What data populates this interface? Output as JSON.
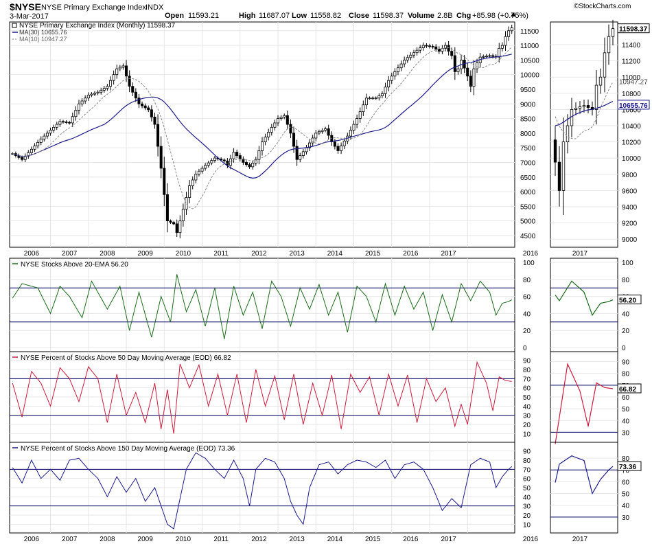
{
  "header": {
    "symbol": "$NYSE",
    "name": "NYSE Primary Exchange Index",
    "exchange": "INDX",
    "date": "3-Mar-2017",
    "brand": "©StockCharts.com",
    "open_label": "Open",
    "open": "11593.21",
    "high_label": "High",
    "high": "11687.07",
    "low_label": "Low",
    "low": "11558.82",
    "close_label": "Close",
    "close": "11598.37",
    "volume_label": "Volume",
    "volume": "2.8B",
    "chg_label": "Chg",
    "chg": "+85.98 (+0.75%)"
  },
  "colors": {
    "up": "#000000",
    "down": "#000000",
    "ma30": "#1a1a8c",
    "ma10": "#888888",
    "p1": "#1a6b1a",
    "p2": "#cc1a3a",
    "p3": "#1a1a8c",
    "ref": "#000066",
    "grid": "#e6e6e6"
  },
  "chart_data": [
    {
      "type": "candlestick",
      "title": "NYSE Primary Exchange Index (Monthly) 11598.37",
      "legend": [
        "MA(30) 10655.76",
        "MA(10) 10947.27"
      ],
      "last_value": "11598.37",
      "ma30_last": "10655.76",
      "ma10_last": "10947.27",
      "x_ticks": [
        "2006",
        "2007",
        "2008",
        "2009",
        "2010",
        "2011",
        "2012",
        "2013",
        "2014",
        "2015",
        "2016",
        "2017"
      ],
      "y_ticks": [
        "4500",
        "5000",
        "5500",
        "6000",
        "6500",
        "7000",
        "7500",
        "8000",
        "8500",
        "9000",
        "9500",
        "10000",
        "10500",
        "11000",
        "11500"
      ],
      "zoom_y_ticks": [
        "9000",
        "9200",
        "9400",
        "9600",
        "9800",
        "10000",
        "10200",
        "10400",
        "10600",
        "10800",
        "11000",
        "11200",
        "11400"
      ],
      "zoom_x_ticks": [
        "2016",
        "2017"
      ],
      "ylim": [
        4100,
        11800
      ],
      "anchors": [
        [
          0,
          7300
        ],
        [
          3,
          7100
        ],
        [
          6,
          7450
        ],
        [
          9,
          7800
        ],
        [
          12,
          8100
        ],
        [
          15,
          8400
        ],
        [
          18,
          8350
        ],
        [
          21,
          9000
        ],
        [
          24,
          9300
        ],
        [
          27,
          9400
        ],
        [
          30,
          9600
        ],
        [
          33,
          10200
        ],
        [
          35,
          10300
        ],
        [
          37,
          9600
        ],
        [
          40,
          9000
        ],
        [
          43,
          8800
        ],
        [
          45,
          8300
        ],
        [
          47,
          6800
        ],
        [
          49,
          5000
        ],
        [
          51,
          4900
        ],
        [
          52,
          4600
        ],
        [
          54,
          5400
        ],
        [
          56,
          6200
        ],
        [
          58,
          6600
        ],
        [
          61,
          6900
        ],
        [
          64,
          7150
        ],
        [
          67,
          7050
        ],
        [
          68,
          6900
        ],
        [
          70,
          7350
        ],
        [
          73,
          7000
        ],
        [
          75,
          6850
        ],
        [
          77,
          7100
        ],
        [
          79,
          7700
        ],
        [
          82,
          8200
        ],
        [
          84,
          8500
        ],
        [
          86,
          8600
        ],
        [
          88,
          8000
        ],
        [
          90,
          7100
        ],
        [
          93,
          7500
        ],
        [
          96,
          8000
        ],
        [
          99,
          8150
        ],
        [
          101,
          7700
        ],
        [
          103,
          7400
        ],
        [
          106,
          7900
        ],
        [
          109,
          8500
        ],
        [
          112,
          9200
        ],
        [
          115,
          9200
        ],
        [
          117,
          9350
        ],
        [
          119,
          9800
        ],
        [
          121,
          10100
        ],
        [
          124,
          10500
        ],
        [
          127,
          10750
        ],
        [
          130,
          11000
        ],
        [
          133,
          10950
        ],
        [
          135,
          10800
        ],
        [
          137,
          11000
        ],
        [
          138,
          10800
        ],
        [
          139,
          10650
        ],
        [
          140,
          10100
        ],
        [
          141,
          10200
        ],
        [
          142,
          10500
        ],
        [
          144,
          9950
        ],
        [
          145,
          9600
        ],
        [
          146,
          10200
        ],
        [
          148,
          10600
        ],
        [
          151,
          10650
        ],
        [
          153,
          10600
        ],
        [
          154,
          10900
        ],
        [
          155,
          11000
        ],
        [
          156,
          11300
        ],
        [
          157,
          11500
        ],
        [
          158,
          11598
        ]
      ],
      "x": {
        "start": "2005-01",
        "end": "2017-03",
        "step": "month"
      },
      "subtitle": "",
      "xlabel": "",
      "ylabel": ""
    },
    {
      "type": "line",
      "title": "NYSE Stocks Above 20-EMA 56.20",
      "last_value": "56.20",
      "y_ticks": [
        "0",
        "20",
        "40",
        "60",
        "80",
        "100"
      ],
      "ylim": [
        0,
        100
      ],
      "ref_lines": [
        30,
        70
      ],
      "anchors": [
        [
          0,
          58
        ],
        [
          3,
          75
        ],
        [
          8,
          70
        ],
        [
          12,
          40
        ],
        [
          15,
          72
        ],
        [
          18,
          60
        ],
        [
          22,
          35
        ],
        [
          25,
          78
        ],
        [
          30,
          45
        ],
        [
          34,
          72
        ],
        [
          37,
          20
        ],
        [
          40,
          65
        ],
        [
          44,
          12
        ],
        [
          47,
          60
        ],
        [
          50,
          30
        ],
        [
          52,
          86
        ],
        [
          55,
          42
        ],
        [
          58,
          68
        ],
        [
          61,
          25
        ],
        [
          64,
          70
        ],
        [
          67,
          10
        ],
        [
          70,
          72
        ],
        [
          73,
          38
        ],
        [
          76,
          65
        ],
        [
          79,
          22
        ],
        [
          82,
          78
        ],
        [
          85,
          60
        ],
        [
          88,
          25
        ],
        [
          91,
          70
        ],
        [
          94,
          45
        ],
        [
          97,
          74
        ],
        [
          100,
          38
        ],
        [
          103,
          65
        ],
        [
          106,
          18
        ],
        [
          109,
          72
        ],
        [
          112,
          60
        ],
        [
          115,
          30
        ],
        [
          118,
          75
        ],
        [
          121,
          38
        ],
        [
          124,
          72
        ],
        [
          127,
          45
        ],
        [
          130,
          65
        ],
        [
          133,
          20
        ],
        [
          136,
          62
        ],
        [
          139,
          30
        ],
        [
          142,
          75
        ],
        [
          145,
          55
        ],
        [
          148,
          78
        ],
        [
          151,
          65
        ],
        [
          153,
          38
        ],
        [
          155,
          52
        ],
        [
          157,
          54
        ],
        [
          158,
          56
        ]
      ],
      "zoom_ticks": [
        "0",
        "20",
        "40",
        "60",
        "80",
        "100"
      ],
      "x": {
        "start": "2005-01",
        "end": "2017-03",
        "step": "month"
      },
      "subtitle": "",
      "xlabel": "",
      "ylabel": ""
    },
    {
      "type": "line",
      "title": "NYSE Percent of Stocks Above 50 Day Moving Average (EOD) 66.82",
      "last_value": "66.82",
      "y_ticks": [
        "10",
        "20",
        "30",
        "40",
        "50",
        "60",
        "70",
        "80",
        "90"
      ],
      "ylim": [
        5,
        95
      ],
      "ref_lines": [
        30,
        70
      ],
      "anchors": [
        [
          0,
          65
        ],
        [
          3,
          28
        ],
        [
          6,
          78
        ],
        [
          9,
          65
        ],
        [
          12,
          40
        ],
        [
          15,
          82
        ],
        [
          18,
          70
        ],
        [
          21,
          45
        ],
        [
          24,
          83
        ],
        [
          27,
          70
        ],
        [
          30,
          22
        ],
        [
          33,
          75
        ],
        [
          36,
          30
        ],
        [
          39,
          55
        ],
        [
          42,
          22
        ],
        [
          45,
          65
        ],
        [
          47,
          15
        ],
        [
          49,
          58
        ],
        [
          51,
          10
        ],
        [
          53,
          86
        ],
        [
          56,
          60
        ],
        [
          59,
          85
        ],
        [
          62,
          40
        ],
        [
          65,
          75
        ],
        [
          68,
          30
        ],
        [
          71,
          75
        ],
        [
          74,
          22
        ],
        [
          77,
          80
        ],
        [
          80,
          40
        ],
        [
          83,
          73
        ],
        [
          86,
          25
        ],
        [
          89,
          75
        ],
        [
          92,
          20
        ],
        [
          95,
          65
        ],
        [
          98,
          30
        ],
        [
          101,
          74
        ],
        [
          104,
          15
        ],
        [
          107,
          75
        ],
        [
          110,
          55
        ],
        [
          113,
          72
        ],
        [
          116,
          30
        ],
        [
          119,
          75
        ],
        [
          122,
          40
        ],
        [
          125,
          74
        ],
        [
          128,
          22
        ],
        [
          131,
          70
        ],
        [
          134,
          45
        ],
        [
          137,
          60
        ],
        [
          140,
          18
        ],
        [
          142,
          42
        ],
        [
          144,
          20
        ],
        [
          147,
          88
        ],
        [
          150,
          65
        ],
        [
          152,
          35
        ],
        [
          154,
          72
        ],
        [
          156,
          68
        ],
        [
          158,
          67
        ]
      ],
      "zoom_ticks": [
        "30",
        "40",
        "50",
        "60",
        "70",
        "80",
        "90"
      ],
      "x": {
        "start": "2005-01",
        "end": "2017-03",
        "step": "month"
      },
      "subtitle": "",
      "xlabel": "",
      "ylabel": ""
    },
    {
      "type": "line",
      "title": "NYSE Percent of Stocks Above 150 Day Moving Average (EOD) 73.36",
      "last_value": "73.36",
      "y_ticks": [
        "10",
        "20",
        "30",
        "40",
        "50",
        "60",
        "70",
        "80",
        "90"
      ],
      "ylim": [
        5,
        95
      ],
      "ref_lines": [
        30,
        70
      ],
      "anchors": [
        [
          0,
          72
        ],
        [
          3,
          55
        ],
        [
          6,
          80
        ],
        [
          9,
          60
        ],
        [
          12,
          70
        ],
        [
          15,
          58
        ],
        [
          18,
          80
        ],
        [
          21,
          82
        ],
        [
          24,
          70
        ],
        [
          27,
          60
        ],
        [
          30,
          40
        ],
        [
          33,
          62
        ],
        [
          36,
          45
        ],
        [
          39,
          60
        ],
        [
          42,
          35
        ],
        [
          45,
          50
        ],
        [
          47,
          30
        ],
        [
          49,
          10
        ],
        [
          51,
          5
        ],
        [
          53,
          38
        ],
        [
          55,
          70
        ],
        [
          58,
          88
        ],
        [
          61,
          82
        ],
        [
          64,
          70
        ],
        [
          67,
          60
        ],
        [
          70,
          80
        ],
        [
          73,
          60
        ],
        [
          75,
          30
        ],
        [
          77,
          70
        ],
        [
          80,
          82
        ],
        [
          83,
          78
        ],
        [
          86,
          60
        ],
        [
          88,
          35
        ],
        [
          90,
          20
        ],
        [
          92,
          10
        ],
        [
          94,
          50
        ],
        [
          97,
          75
        ],
        [
          100,
          78
        ],
        [
          103,
          65
        ],
        [
          106,
          75
        ],
        [
          109,
          80
        ],
        [
          112,
          78
        ],
        [
          115,
          72
        ],
        [
          118,
          80
        ],
        [
          121,
          60
        ],
        [
          124,
          75
        ],
        [
          127,
          78
        ],
        [
          130,
          70
        ],
        [
          133,
          50
        ],
        [
          136,
          25
        ],
        [
          139,
          38
        ],
        [
          142,
          28
        ],
        [
          145,
          75
        ],
        [
          148,
          82
        ],
        [
          151,
          78
        ],
        [
          153,
          50
        ],
        [
          155,
          62
        ],
        [
          157,
          70
        ],
        [
          158,
          73
        ]
      ],
      "zoom_ticks": [
        "30",
        "40",
        "50",
        "60",
        "70",
        "80"
      ],
      "x": {
        "start": "2005-01",
        "end": "2017-03",
        "step": "month"
      },
      "subtitle": "",
      "xlabel": "",
      "ylabel": ""
    }
  ]
}
